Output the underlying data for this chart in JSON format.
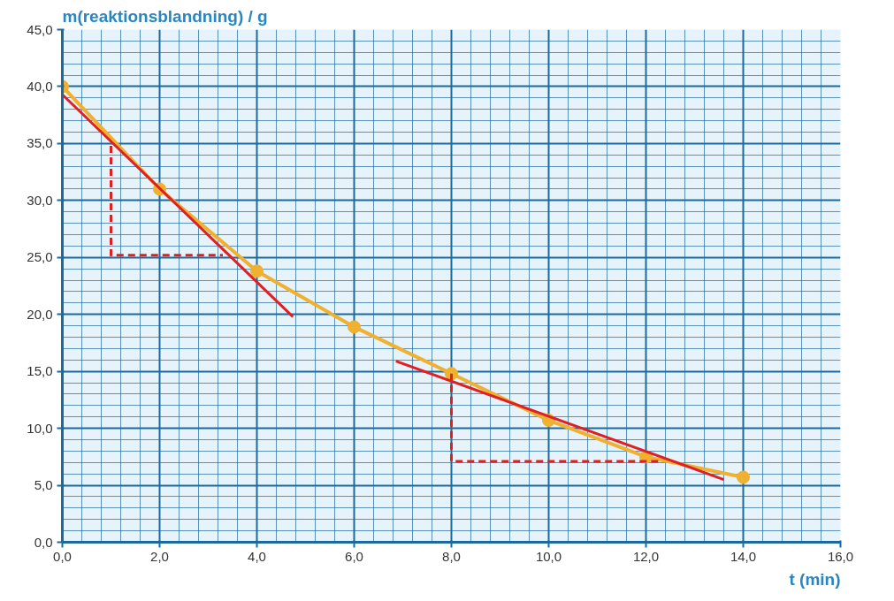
{
  "chart_data": {
    "type": "line",
    "xlabel": "t (min)",
    "ylabel": "m(reaktionsblandning) / g",
    "xlim": [
      0,
      16
    ],
    "ylim": [
      0,
      45
    ],
    "xticks": [
      {
        "value": 0,
        "label": "0,0"
      },
      {
        "value": 0.4,
        "label": null
      },
      {
        "value": 0.8,
        "label": null
      },
      {
        "value": 1.2,
        "label": null
      },
      {
        "value": 1.6,
        "label": null
      },
      {
        "value": 2,
        "label": "2,0"
      },
      {
        "value": 2.4,
        "label": null
      },
      {
        "value": 2.8,
        "label": null
      },
      {
        "value": 3.2,
        "label": null
      },
      {
        "value": 3.6,
        "label": null
      },
      {
        "value": 4,
        "label": "4,0"
      },
      {
        "value": 4.4,
        "label": null
      },
      {
        "value": 4.8,
        "label": null
      },
      {
        "value": 5.2,
        "label": null
      },
      {
        "value": 5.6,
        "label": null
      },
      {
        "value": 6,
        "label": "6,0"
      },
      {
        "value": 6.4,
        "label": null
      },
      {
        "value": 6.8,
        "label": null
      },
      {
        "value": 7.2,
        "label": null
      },
      {
        "value": 7.6,
        "label": null
      },
      {
        "value": 8,
        "label": "8,0"
      },
      {
        "value": 8.4,
        "label": null
      },
      {
        "value": 8.8,
        "label": null
      },
      {
        "value": 9.2,
        "label": null
      },
      {
        "value": 9.6,
        "label": null
      },
      {
        "value": 10,
        "label": "10,0"
      },
      {
        "value": 10.4,
        "label": null
      },
      {
        "value": 10.8,
        "label": null
      },
      {
        "value": 11.2,
        "label": null
      },
      {
        "value": 11.6,
        "label": null
      },
      {
        "value": 12,
        "label": "12,0"
      },
      {
        "value": 12.4,
        "label": null
      },
      {
        "value": 12.8,
        "label": null
      },
      {
        "value": 13.2,
        "label": null
      },
      {
        "value": 13.6,
        "label": null
      },
      {
        "value": 14,
        "label": "14,0"
      },
      {
        "value": 14.4,
        "label": null
      },
      {
        "value": 14.8,
        "label": null
      },
      {
        "value": 15.2,
        "label": null
      },
      {
        "value": 15.6,
        "label": null
      },
      {
        "value": 16,
        "label": "16,0"
      }
    ],
    "yticks": [
      {
        "value": 0,
        "label": "0,0"
      },
      {
        "value": 1,
        "label": null
      },
      {
        "value": 2,
        "label": null
      },
      {
        "value": 3,
        "label": null
      },
      {
        "value": 4,
        "label": null
      },
      {
        "value": 5,
        "label": "5,0"
      },
      {
        "value": 6,
        "label": null
      },
      {
        "value": 7,
        "label": null
      },
      {
        "value": 8,
        "label": null
      },
      {
        "value": 9,
        "label": null
      },
      {
        "value": 10,
        "label": "10,0"
      },
      {
        "value": 11,
        "label": null
      },
      {
        "value": 12,
        "label": null
      },
      {
        "value": 13,
        "label": null
      },
      {
        "value": 14,
        "label": null
      },
      {
        "value": 15,
        "label": "15,0"
      },
      {
        "value": 16,
        "label": null
      },
      {
        "value": 17,
        "label": null
      },
      {
        "value": 18,
        "label": null
      },
      {
        "value": 19,
        "label": null
      },
      {
        "value": 20,
        "label": "20,0"
      },
      {
        "value": 21,
        "label": null
      },
      {
        "value": 22,
        "label": null
      },
      {
        "value": 23,
        "label": null
      },
      {
        "value": 24,
        "label": null
      },
      {
        "value": 25,
        "label": "25,0"
      },
      {
        "value": 26,
        "label": null
      },
      {
        "value": 27,
        "label": null
      },
      {
        "value": 28,
        "label": null
      },
      {
        "value": 29,
        "label": null
      },
      {
        "value": 30,
        "label": "30,0"
      },
      {
        "value": 31,
        "label": null
      },
      {
        "value": 32,
        "label": null
      },
      {
        "value": 33,
        "label": null
      },
      {
        "value": 34,
        "label": null
      },
      {
        "value": 35,
        "label": "35,0"
      },
      {
        "value": 36,
        "label": null
      },
      {
        "value": 37,
        "label": null
      },
      {
        "value": 38,
        "label": null
      },
      {
        "value": 39,
        "label": null
      },
      {
        "value": 40,
        "label": "40,0"
      },
      {
        "value": 41,
        "label": null
      },
      {
        "value": 42,
        "label": null
      },
      {
        "value": 43,
        "label": null
      },
      {
        "value": 44,
        "label": null
      },
      {
        "value": 45,
        "label": "45,0"
      }
    ],
    "grid": true,
    "series": [
      {
        "color": "#f0b030",
        "marker": "circle",
        "line_style": "solid",
        "x": [
          0,
          2,
          4,
          6,
          8,
          10,
          12,
          14
        ],
        "values": [
          40,
          31,
          23.8,
          18.9,
          14.8,
          10.7,
          7.5,
          5.7
        ]
      },
      {
        "color": "#e02020",
        "marker": "none",
        "line_style": "solid",
        "x": [
          0,
          4.74
        ],
        "values": [
          39.3,
          19.8
        ]
      },
      {
        "color": "#e02020",
        "marker": "none",
        "line_style": "dashed",
        "x": [
          1,
          1,
          3.3
        ],
        "values": [
          34.8,
          25.2,
          25.2
        ]
      },
      {
        "color": "#e02020",
        "marker": "none",
        "line_style": "solid",
        "x": [
          6.86,
          13.6
        ],
        "values": [
          15.9,
          5.5
        ]
      },
      {
        "color": "#e02020",
        "marker": "none",
        "line_style": "dashed",
        "x": [
          8,
          8,
          12.3
        ],
        "values": [
          14.8,
          7.1,
          7.1
        ]
      }
    ]
  }
}
